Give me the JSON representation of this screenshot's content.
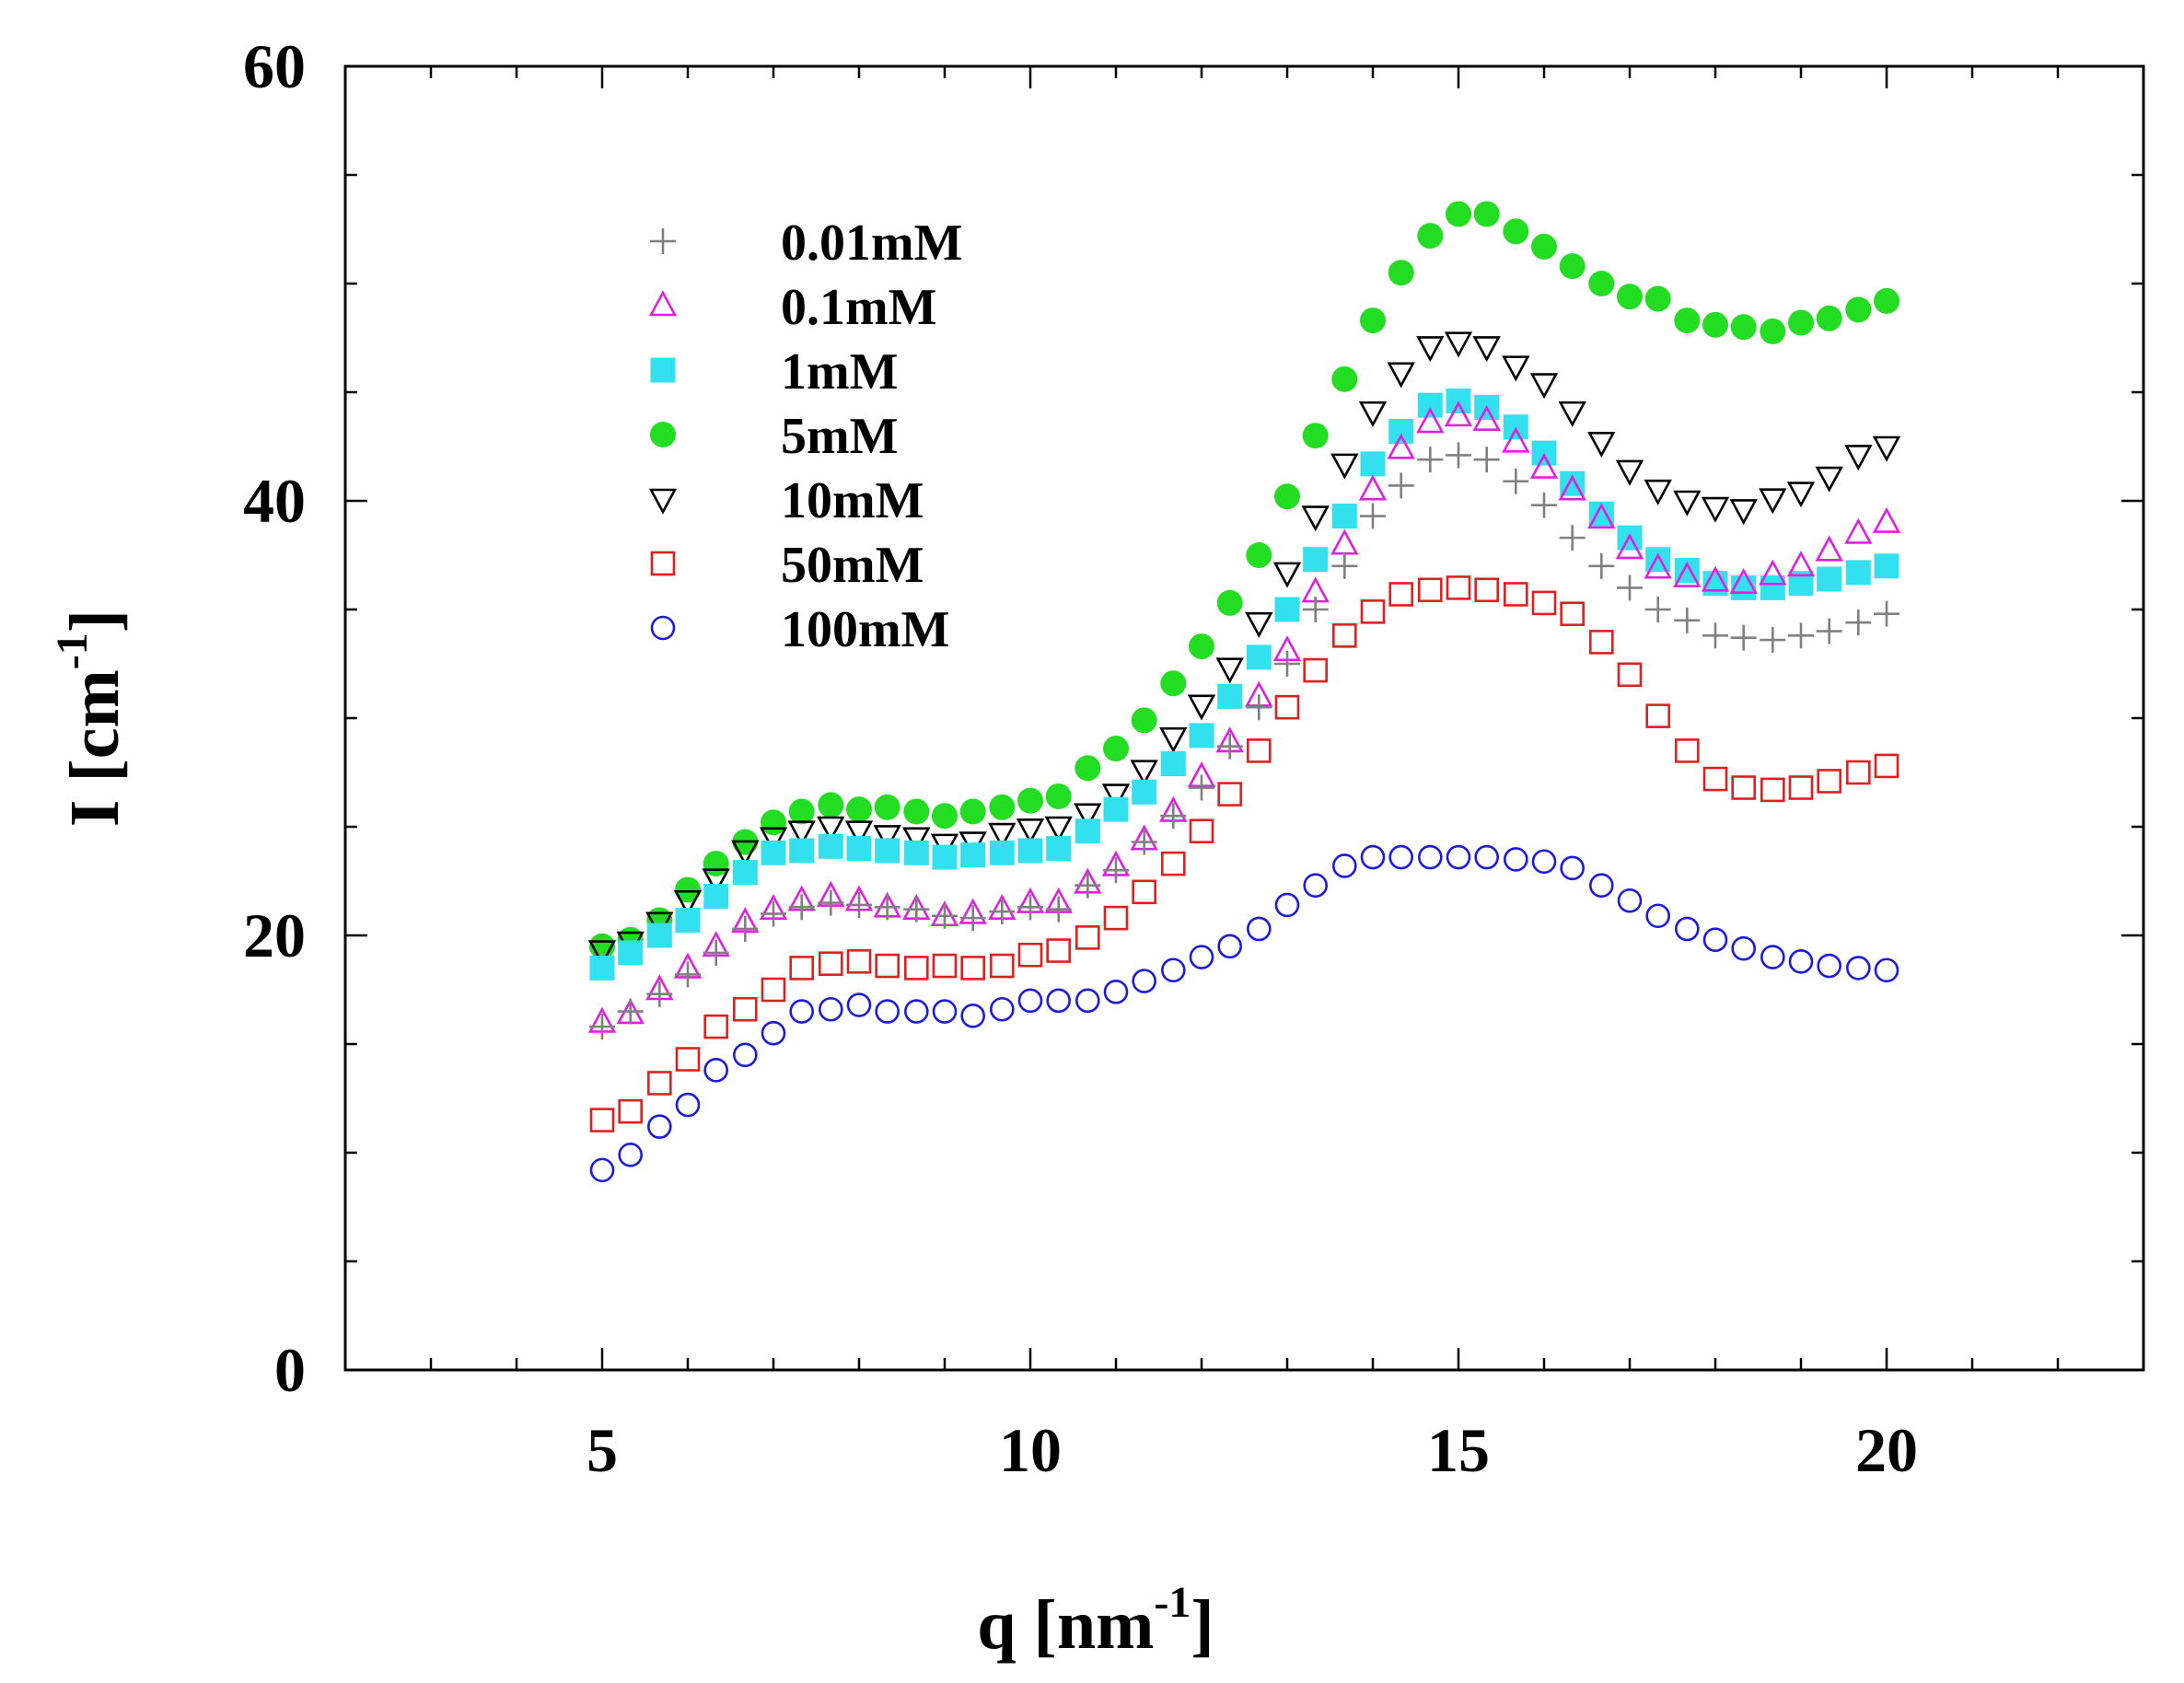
{
  "chart_data": {
    "type": "scatter",
    "title": "",
    "xlabel": "q [nm",
    "xlabel_sup": "-1",
    "xlabel_end": "]",
    "ylabel": "I [cm",
    "ylabel_sup": "-1",
    "ylabel_end": "]",
    "xlim": [
      2,
      23
    ],
    "ylim": [
      0,
      60
    ],
    "xticks": [
      5,
      10,
      15,
      20
    ],
    "yticks": [
      0,
      20,
      40,
      60
    ],
    "xtick_labels": [
      "5",
      "10",
      "15",
      "20"
    ],
    "ytick_labels": [
      "0",
      "20",
      "40",
      "60"
    ],
    "grid": false,
    "legend_position": "top-left",
    "x": [
      5.0,
      5.33,
      5.67,
      6.0,
      6.33,
      6.67,
      7.0,
      7.33,
      7.67,
      8.0,
      8.33,
      8.67,
      9.0,
      9.33,
      9.67,
      10.0,
      10.33,
      10.67,
      11.0,
      11.33,
      11.67,
      12.0,
      12.33,
      12.67,
      13.0,
      13.33,
      13.67,
      14.0,
      14.33,
      14.67,
      15.0,
      15.33,
      15.67,
      16.0,
      16.33,
      16.67,
      17.0,
      17.33,
      17.67,
      18.0,
      18.33,
      18.67,
      19.0,
      19.33,
      19.67,
      20.0
    ],
    "series": [
      {
        "name": "0.01mM",
        "marker": "plus",
        "color": "#808080",
        "values": [
          15.8,
          16.5,
          17.3,
          18.2,
          19.2,
          20.3,
          21.0,
          21.3,
          21.5,
          21.4,
          21.3,
          21.2,
          20.9,
          20.8,
          21.1,
          21.3,
          21.2,
          22.3,
          23.0,
          24.3,
          25.5,
          26.8,
          28.7,
          30.5,
          32.5,
          35.0,
          37.0,
          39.3,
          40.7,
          41.9,
          42.1,
          41.9,
          40.9,
          39.8,
          38.3,
          37.0,
          36.0,
          35.0,
          34.5,
          33.8,
          33.7,
          33.6,
          33.8,
          34.0,
          34.4,
          34.8
        ]
      },
      {
        "name": "0.1mM",
        "marker": "triangle-up",
        "color": "#e020e0",
        "values": [
          16.0,
          16.4,
          17.5,
          18.5,
          19.5,
          20.6,
          21.2,
          21.6,
          21.8,
          21.6,
          21.3,
          21.2,
          20.9,
          21.0,
          21.2,
          21.5,
          21.5,
          22.4,
          23.2,
          24.4,
          25.7,
          27.3,
          28.9,
          31.0,
          33.1,
          35.8,
          38.0,
          40.5,
          42.4,
          43.6,
          43.9,
          43.7,
          42.7,
          41.5,
          40.5,
          39.2,
          37.8,
          36.9,
          36.5,
          36.3,
          36.2,
          36.6,
          37.0,
          37.7,
          38.5,
          39.0
        ]
      },
      {
        "name": "1mM",
        "marker": "square-filled",
        "color": "#33e0ee",
        "values": [
          18.5,
          19.2,
          20.0,
          20.7,
          21.8,
          22.9,
          23.8,
          23.9,
          24.1,
          24.0,
          23.9,
          23.8,
          23.6,
          23.7,
          23.8,
          23.9,
          24.0,
          24.8,
          25.8,
          26.6,
          27.9,
          29.2,
          31.0,
          32.8,
          35.0,
          37.3,
          39.3,
          41.7,
          43.2,
          44.4,
          44.6,
          44.3,
          43.4,
          42.2,
          40.8,
          39.4,
          38.3,
          37.3,
          36.8,
          36.2,
          36.0,
          36.0,
          36.2,
          36.4,
          36.7,
          37.0
        ]
      },
      {
        "name": "5mM",
        "marker": "circle-filled",
        "color": "#22dd22",
        "values": [
          19.5,
          19.8,
          20.7,
          22.1,
          23.3,
          24.3,
          25.2,
          25.7,
          26.0,
          25.8,
          25.9,
          25.7,
          25.5,
          25.7,
          25.9,
          26.2,
          26.4,
          27.7,
          28.6,
          29.9,
          31.6,
          33.3,
          35.3,
          37.5,
          40.2,
          43.0,
          45.6,
          48.3,
          50.5,
          52.2,
          53.2,
          53.2,
          52.4,
          51.7,
          50.8,
          50.0,
          49.4,
          49.3,
          48.3,
          48.1,
          48.0,
          47.8,
          48.2,
          48.4,
          48.8,
          49.2
        ]
      },
      {
        "name": "10mM",
        "marker": "triangle-down",
        "color": "#000000",
        "values": [
          19.3,
          19.7,
          20.6,
          21.6,
          22.6,
          23.9,
          24.5,
          24.8,
          25.0,
          24.8,
          24.6,
          24.5,
          24.2,
          24.3,
          24.7,
          24.9,
          25.0,
          25.6,
          26.5,
          27.6,
          29.1,
          30.6,
          32.3,
          34.4,
          36.7,
          39.3,
          41.7,
          44.1,
          45.9,
          47.1,
          47.3,
          47.1,
          46.2,
          45.4,
          44.1,
          42.7,
          41.4,
          40.5,
          40.0,
          39.7,
          39.6,
          40.1,
          40.4,
          41.1,
          42.1,
          42.5
        ]
      },
      {
        "name": "50mM",
        "marker": "square-open",
        "color": "#e02020",
        "values": [
          11.5,
          11.9,
          13.2,
          14.3,
          15.8,
          16.6,
          17.5,
          18.5,
          18.7,
          18.8,
          18.6,
          18.5,
          18.6,
          18.5,
          18.6,
          19.1,
          19.3,
          19.9,
          20.8,
          22.0,
          23.3,
          24.8,
          26.5,
          28.5,
          30.5,
          32.2,
          33.8,
          34.9,
          35.7,
          35.9,
          36.0,
          35.9,
          35.7,
          35.3,
          34.8,
          33.5,
          32.0,
          30.1,
          28.5,
          27.2,
          26.8,
          26.7,
          26.8,
          27.1,
          27.5,
          27.8
        ]
      },
      {
        "name": "100mM",
        "marker": "circle-open",
        "color": "#1a1ae0",
        "values": [
          9.2,
          9.9,
          11.2,
          12.2,
          13.8,
          14.5,
          15.5,
          16.5,
          16.6,
          16.8,
          16.5,
          16.5,
          16.5,
          16.3,
          16.6,
          17.0,
          17.0,
          17.0,
          17.4,
          17.9,
          18.4,
          19.0,
          19.5,
          20.3,
          21.4,
          22.3,
          23.2,
          23.6,
          23.6,
          23.6,
          23.6,
          23.6,
          23.5,
          23.4,
          23.1,
          22.3,
          21.6,
          20.9,
          20.3,
          19.8,
          19.4,
          19.0,
          18.8,
          18.6,
          18.5,
          18.4
        ]
      }
    ]
  }
}
